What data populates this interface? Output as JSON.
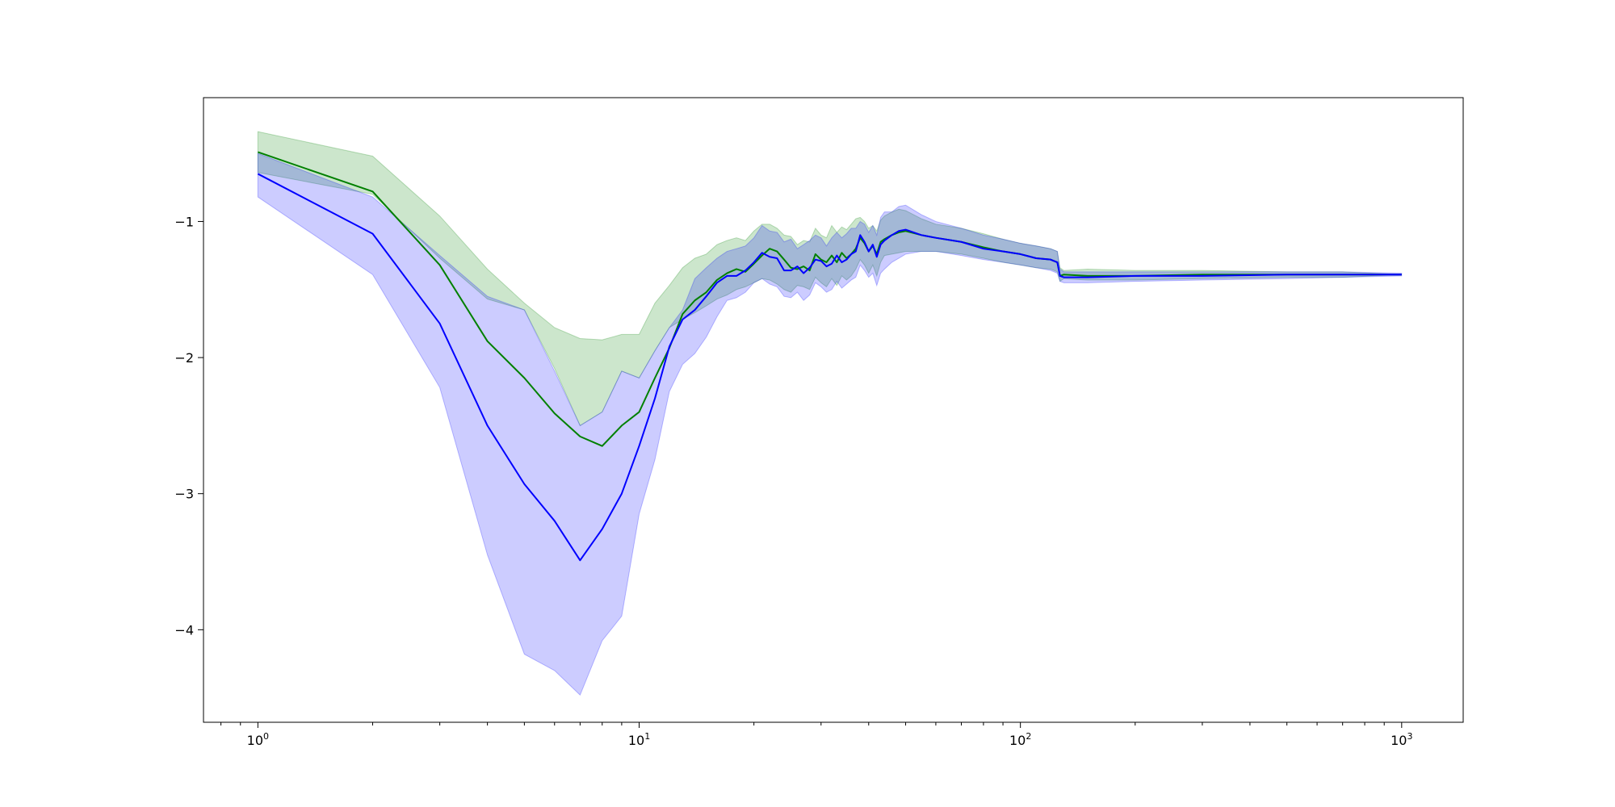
{
  "chart_data": {
    "type": "line",
    "title": "",
    "xlabel": "",
    "ylabel": "",
    "xscale": "log",
    "xlim": [
      0.72,
      1450
    ],
    "ylim": [
      -4.68,
      -0.09
    ],
    "grid": false,
    "colors": {
      "green": "#008000",
      "blue": "#0000ff",
      "green_fill": "#008000",
      "blue_fill": "#0000ff"
    },
    "x_ticks": [
      {
        "value": 1,
        "base": "10",
        "exp": "0"
      },
      {
        "value": 10,
        "base": "10",
        "exp": "1"
      },
      {
        "value": 100,
        "base": "10",
        "exp": "2"
      },
      {
        "value": 1000,
        "base": "10",
        "exp": "3"
      }
    ],
    "y_ticks": [
      {
        "value": -1,
        "label": "−1"
      },
      {
        "value": -2,
        "label": "−2"
      },
      {
        "value": -3,
        "label": "−3"
      },
      {
        "value": -4,
        "label": "−4"
      }
    ],
    "series": [
      {
        "color": "#008000",
        "x": [
          1,
          2,
          3,
          4,
          5,
          6,
          7,
          8,
          9,
          10,
          11,
          12,
          13,
          14,
          15,
          16,
          17,
          18,
          19,
          20,
          21,
          22,
          23,
          24,
          25,
          26,
          27,
          28,
          29,
          30,
          31,
          32,
          33,
          34,
          35,
          36,
          37,
          38,
          39,
          40,
          41,
          42,
          43,
          44,
          46,
          48,
          50,
          55,
          60,
          70,
          80,
          90,
          100,
          110,
          120,
          125,
          127,
          130,
          150,
          200,
          300,
          500,
          700,
          1000
        ],
        "mean": [
          -0.49,
          -0.78,
          -1.32,
          -1.88,
          -2.15,
          -2.41,
          -2.58,
          -2.65,
          -2.5,
          -2.4,
          -2.15,
          -1.93,
          -1.68,
          -1.58,
          -1.52,
          -1.43,
          -1.38,
          -1.35,
          -1.37,
          -1.31,
          -1.25,
          -1.2,
          -1.22,
          -1.28,
          -1.34,
          -1.35,
          -1.33,
          -1.36,
          -1.24,
          -1.28,
          -1.3,
          -1.25,
          -1.3,
          -1.23,
          -1.27,
          -1.24,
          -1.2,
          -1.12,
          -1.16,
          -1.22,
          -1.18,
          -1.24,
          -1.15,
          -1.13,
          -1.1,
          -1.08,
          -1.07,
          -1.1,
          -1.12,
          -1.15,
          -1.19,
          -1.22,
          -1.24,
          -1.27,
          -1.28,
          -1.3,
          -1.4,
          -1.39,
          -1.4,
          -1.4,
          -1.39,
          -1.39,
          -1.39,
          -1.39
        ],
        "upper": [
          -0.34,
          -0.52,
          -0.96,
          -1.35,
          -1.6,
          -1.78,
          -1.86,
          -1.87,
          -1.83,
          -1.83,
          -1.6,
          -1.47,
          -1.34,
          -1.27,
          -1.24,
          -1.17,
          -1.14,
          -1.12,
          -1.14,
          -1.07,
          -1.02,
          -1.02,
          -1.05,
          -1.1,
          -1.11,
          -1.17,
          -1.14,
          -1.15,
          -1.05,
          -1.1,
          -1.12,
          -1.03,
          -1.08,
          -1.04,
          -1.06,
          -1.02,
          -0.98,
          -0.97,
          -1.0,
          -1.05,
          -1.03,
          -1.07,
          -0.99,
          -0.96,
          -0.93,
          -0.91,
          -0.92,
          -0.98,
          -1.02,
          -1.05,
          -1.09,
          -1.13,
          -1.16,
          -1.18,
          -1.2,
          -1.22,
          -1.34,
          -1.36,
          -1.35,
          -1.36,
          -1.36,
          -1.37,
          -1.37,
          -1.39
        ],
        "lower": [
          -0.64,
          -0.8,
          -1.27,
          -1.57,
          -1.65,
          -2.08,
          -2.5,
          -2.4,
          -2.1,
          -2.15,
          -1.95,
          -1.78,
          -1.72,
          -1.67,
          -1.62,
          -1.57,
          -1.54,
          -1.5,
          -1.48,
          -1.45,
          -1.42,
          -1.43,
          -1.46,
          -1.5,
          -1.52,
          -1.47,
          -1.48,
          -1.5,
          -1.41,
          -1.45,
          -1.48,
          -1.42,
          -1.47,
          -1.4,
          -1.43,
          -1.4,
          -1.35,
          -1.28,
          -1.32,
          -1.38,
          -1.32,
          -1.4,
          -1.3,
          -1.25,
          -1.24,
          -1.23,
          -1.22,
          -1.22,
          -1.22,
          -1.24,
          -1.27,
          -1.3,
          -1.32,
          -1.34,
          -1.35,
          -1.37,
          -1.44,
          -1.42,
          -1.43,
          -1.43,
          -1.42,
          -1.41,
          -1.41,
          -1.39
        ]
      },
      {
        "color": "#0000ff",
        "x": [
          1,
          2,
          3,
          4,
          5,
          6,
          7,
          8,
          9,
          10,
          11,
          12,
          13,
          14,
          15,
          16,
          17,
          18,
          19,
          20,
          21,
          22,
          23,
          24,
          25,
          26,
          27,
          28,
          29,
          30,
          31,
          32,
          33,
          34,
          35,
          36,
          37,
          38,
          39,
          40,
          41,
          42,
          43,
          44,
          46,
          48,
          50,
          55,
          60,
          70,
          80,
          90,
          100,
          110,
          120,
          125,
          127,
          130,
          150,
          200,
          300,
          500,
          700,
          1000
        ],
        "mean": [
          -0.65,
          -1.09,
          -1.75,
          -2.5,
          -2.93,
          -3.2,
          -3.49,
          -3.26,
          -3.0,
          -2.65,
          -2.3,
          -1.92,
          -1.72,
          -1.65,
          -1.55,
          -1.45,
          -1.4,
          -1.4,
          -1.36,
          -1.3,
          -1.23,
          -1.26,
          -1.27,
          -1.36,
          -1.36,
          -1.33,
          -1.38,
          -1.34,
          -1.28,
          -1.29,
          -1.33,
          -1.31,
          -1.25,
          -1.3,
          -1.28,
          -1.24,
          -1.22,
          -1.1,
          -1.15,
          -1.22,
          -1.17,
          -1.26,
          -1.17,
          -1.14,
          -1.1,
          -1.07,
          -1.06,
          -1.1,
          -1.12,
          -1.15,
          -1.2,
          -1.22,
          -1.24,
          -1.27,
          -1.28,
          -1.3,
          -1.4,
          -1.41,
          -1.41,
          -1.4,
          -1.4,
          -1.39,
          -1.39,
          -1.39
        ],
        "upper": [
          -0.5,
          -0.82,
          -1.25,
          -1.55,
          -1.65,
          -2.1,
          -2.5,
          -2.4,
          -2.1,
          -2.15,
          -1.95,
          -1.78,
          -1.65,
          -1.42,
          -1.34,
          -1.27,
          -1.22,
          -1.2,
          -1.18,
          -1.12,
          -1.03,
          -1.07,
          -1.08,
          -1.15,
          -1.13,
          -1.2,
          -1.17,
          -1.14,
          -1.1,
          -1.12,
          -1.18,
          -1.12,
          -1.08,
          -1.12,
          -1.09,
          -1.05,
          -1.05,
          -1.0,
          -1.02,
          -1.08,
          -1.03,
          -1.1,
          -0.97,
          -0.93,
          -0.93,
          -0.89,
          -0.88,
          -0.95,
          -1.0,
          -1.05,
          -1.1,
          -1.13,
          -1.16,
          -1.18,
          -1.2,
          -1.22,
          -1.35,
          -1.37,
          -1.37,
          -1.37,
          -1.37,
          -1.37,
          -1.37,
          -1.38
        ],
        "lower": [
          -0.82,
          -1.39,
          -2.22,
          -3.45,
          -4.18,
          -4.3,
          -4.48,
          -4.08,
          -3.9,
          -3.15,
          -2.75,
          -2.25,
          -2.05,
          -1.97,
          -1.85,
          -1.7,
          -1.58,
          -1.56,
          -1.52,
          -1.45,
          -1.42,
          -1.46,
          -1.48,
          -1.55,
          -1.56,
          -1.52,
          -1.58,
          -1.54,
          -1.45,
          -1.48,
          -1.52,
          -1.5,
          -1.44,
          -1.49,
          -1.46,
          -1.43,
          -1.41,
          -1.32,
          -1.36,
          -1.41,
          -1.38,
          -1.47,
          -1.38,
          -1.35,
          -1.3,
          -1.27,
          -1.24,
          -1.22,
          -1.22,
          -1.25,
          -1.28,
          -1.3,
          -1.32,
          -1.34,
          -1.36,
          -1.38,
          -1.44,
          -1.45,
          -1.45,
          -1.44,
          -1.43,
          -1.42,
          -1.41,
          -1.4
        ]
      }
    ]
  }
}
